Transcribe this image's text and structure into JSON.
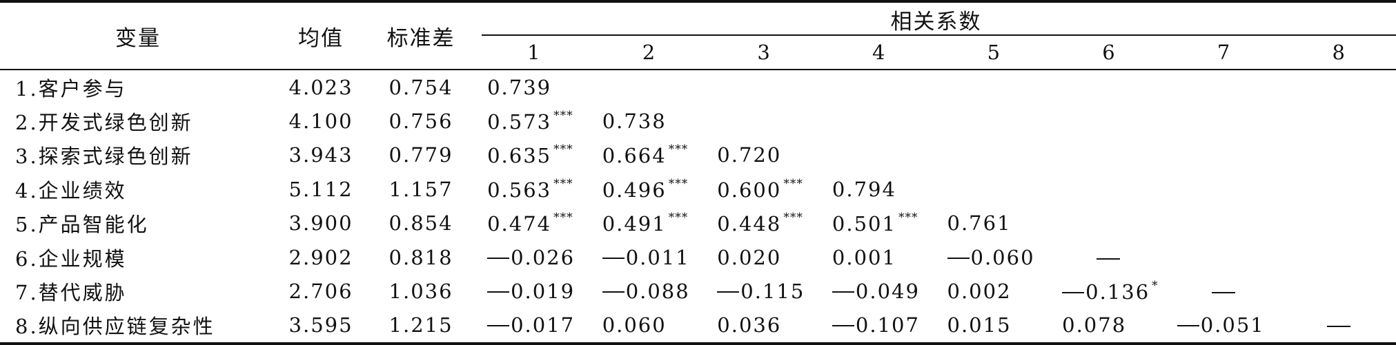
{
  "table": {
    "headers": {
      "variable": "变量",
      "mean": "均值",
      "sd": "标准差",
      "correlation_group": "相关系数",
      "correlation_columns": [
        "1",
        "2",
        "3",
        "4",
        "5",
        "6",
        "7",
        "8"
      ]
    },
    "rows": [
      {
        "variable": "1.客户参与",
        "mean": "4.023",
        "sd": "0.754",
        "corr": [
          {
            "value": "0.739",
            "sig": ""
          }
        ]
      },
      {
        "variable": "2.开发式绿色创新",
        "mean": "4.100",
        "sd": "0.756",
        "corr": [
          {
            "value": "0.573",
            "sig": "***"
          },
          {
            "value": "0.738",
            "sig": ""
          }
        ]
      },
      {
        "variable": "3.探索式绿色创新",
        "mean": "3.943",
        "sd": "0.779",
        "corr": [
          {
            "value": "0.635",
            "sig": "***"
          },
          {
            "value": "0.664",
            "sig": "***"
          },
          {
            "value": "0.720",
            "sig": ""
          }
        ]
      },
      {
        "variable": "4.企业绩效",
        "mean": "5.112",
        "sd": "1.157",
        "corr": [
          {
            "value": "0.563",
            "sig": "***"
          },
          {
            "value": "0.496",
            "sig": "***"
          },
          {
            "value": "0.600",
            "sig": "***"
          },
          {
            "value": "0.794",
            "sig": ""
          }
        ]
      },
      {
        "variable": "5.产品智能化",
        "mean": "3.900",
        "sd": "0.854",
        "corr": [
          {
            "value": "0.474",
            "sig": "***"
          },
          {
            "value": "0.491",
            "sig": "***"
          },
          {
            "value": "0.448",
            "sig": "***"
          },
          {
            "value": "0.501",
            "sig": "***"
          },
          {
            "value": "0.761",
            "sig": ""
          }
        ]
      },
      {
        "variable": "6.企业规模",
        "mean": "2.902",
        "sd": "0.818",
        "corr": [
          {
            "value": "-0.026",
            "sig": ""
          },
          {
            "value": "-0.011",
            "sig": ""
          },
          {
            "value": "0.020",
            "sig": ""
          },
          {
            "value": "0.001",
            "sig": ""
          },
          {
            "value": "-0.060",
            "sig": ""
          },
          {
            "value": "—",
            "sig": ""
          }
        ]
      },
      {
        "variable": "7.替代威胁",
        "mean": "2.706",
        "sd": "1.036",
        "corr": [
          {
            "value": "-0.019",
            "sig": ""
          },
          {
            "value": "-0.088",
            "sig": ""
          },
          {
            "value": "-0.115",
            "sig": ""
          },
          {
            "value": "-0.049",
            "sig": ""
          },
          {
            "value": "0.002",
            "sig": ""
          },
          {
            "value": "-0.136",
            "sig": "*"
          },
          {
            "value": "—",
            "sig": ""
          }
        ]
      },
      {
        "variable": "8.纵向供应链复杂性",
        "mean": "3.595",
        "sd": "1.215",
        "corr": [
          {
            "value": "-0.017",
            "sig": ""
          },
          {
            "value": "0.060",
            "sig": ""
          },
          {
            "value": "0.036",
            "sig": ""
          },
          {
            "value": "-0.107",
            "sig": ""
          },
          {
            "value": "0.015",
            "sig": ""
          },
          {
            "value": "0.078",
            "sig": ""
          },
          {
            "value": "-0.051",
            "sig": ""
          },
          {
            "value": "—",
            "sig": ""
          }
        ]
      }
    ]
  }
}
